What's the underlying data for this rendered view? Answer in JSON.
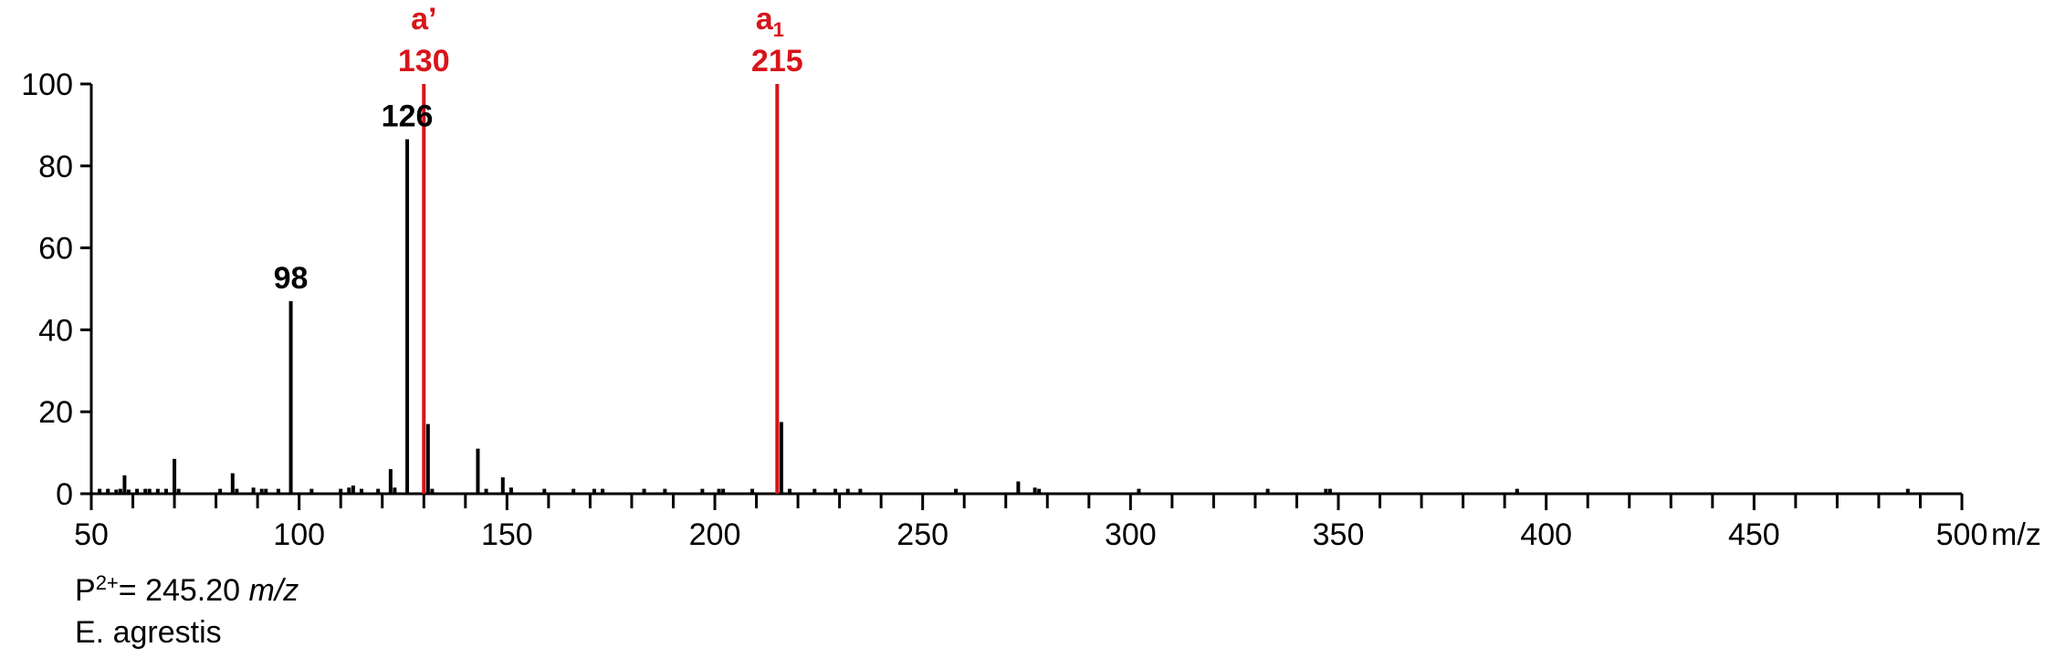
{
  "chart_data": {
    "type": "bar",
    "x_unit": "m/z",
    "xlim": [
      50,
      500
    ],
    "ylim": [
      0,
      100
    ],
    "x_ticks": [
      50,
      100,
      150,
      200,
      250,
      300,
      350,
      400,
      450,
      500
    ],
    "y_ticks": [
      0,
      20,
      40,
      60,
      80,
      100
    ],
    "colors": {
      "default": "#000000",
      "highlight": "#d7141a"
    },
    "peaks": [
      {
        "x": 52,
        "y": 1.2
      },
      {
        "x": 54,
        "y": 1.2
      },
      {
        "x": 56,
        "y": 1.0
      },
      {
        "x": 57,
        "y": 1.2
      },
      {
        "x": 58,
        "y": 4.5
      },
      {
        "x": 59,
        "y": 1.0
      },
      {
        "x": 61,
        "y": 1.2
      },
      {
        "x": 63,
        "y": 1.2
      },
      {
        "x": 64,
        "y": 1.2
      },
      {
        "x": 66,
        "y": 1.2
      },
      {
        "x": 68,
        "y": 1.2
      },
      {
        "x": 70,
        "y": 8.5
      },
      {
        "x": 71,
        "y": 1.2
      },
      {
        "x": 81,
        "y": 1.2
      },
      {
        "x": 84,
        "y": 5.0
      },
      {
        "x": 85,
        "y": 1.2
      },
      {
        "x": 89,
        "y": 1.5
      },
      {
        "x": 91,
        "y": 1.2
      },
      {
        "x": 92,
        "y": 1.2
      },
      {
        "x": 95,
        "y": 1.2
      },
      {
        "x": 98,
        "y": 47,
        "label": "98",
        "color": "default"
      },
      {
        "x": 103,
        "y": 1.2
      },
      {
        "x": 110,
        "y": 1.2
      },
      {
        "x": 112,
        "y": 1.5
      },
      {
        "x": 113,
        "y": 2.0
      },
      {
        "x": 115,
        "y": 1.2
      },
      {
        "x": 119,
        "y": 1.2
      },
      {
        "x": 122,
        "y": 6.0
      },
      {
        "x": 123,
        "y": 1.5
      },
      {
        "x": 126,
        "y": 86.5,
        "label": "126",
        "color": "default"
      },
      {
        "x": 130,
        "y": 100,
        "label": "130",
        "label2": "a’",
        "color": "highlight"
      },
      {
        "x": 131,
        "y": 17.0
      },
      {
        "x": 132,
        "y": 1.2
      },
      {
        "x": 143,
        "y": 11.0
      },
      {
        "x": 145,
        "y": 1.2
      },
      {
        "x": 149,
        "y": 4.0
      },
      {
        "x": 151,
        "y": 1.5
      },
      {
        "x": 159,
        "y": 1.2
      },
      {
        "x": 166,
        "y": 1.2
      },
      {
        "x": 171,
        "y": 1.2
      },
      {
        "x": 173,
        "y": 1.2
      },
      {
        "x": 183,
        "y": 1.2
      },
      {
        "x": 188,
        "y": 1.2
      },
      {
        "x": 197,
        "y": 1.2
      },
      {
        "x": 201,
        "y": 1.2
      },
      {
        "x": 202,
        "y": 1.2
      },
      {
        "x": 209,
        "y": 1.2
      },
      {
        "x": 215,
        "y": 100,
        "label": "215",
        "label2": "a",
        "label2_sub": "1",
        "color": "highlight"
      },
      {
        "x": 216,
        "y": 17.5
      },
      {
        "x": 218,
        "y": 1.2
      },
      {
        "x": 224,
        "y": 1.2
      },
      {
        "x": 229,
        "y": 1.2
      },
      {
        "x": 232,
        "y": 1.2
      },
      {
        "x": 235,
        "y": 1.2
      },
      {
        "x": 258,
        "y": 1.2
      },
      {
        "x": 273,
        "y": 3.0
      },
      {
        "x": 277,
        "y": 1.5
      },
      {
        "x": 278,
        "y": 1.2
      },
      {
        "x": 302,
        "y": 1.2
      },
      {
        "x": 333,
        "y": 1.2
      },
      {
        "x": 347,
        "y": 1.2
      },
      {
        "x": 348,
        "y": 1.2
      },
      {
        "x": 393,
        "y": 1.2
      },
      {
        "x": 487,
        "y": 1.2
      }
    ]
  },
  "footer": {
    "precursor_prefix": "P",
    "precursor_charge": "2+",
    "precursor_value": "= 245.20 ",
    "precursor_unit": "m/z",
    "species": "E. agrestis"
  }
}
